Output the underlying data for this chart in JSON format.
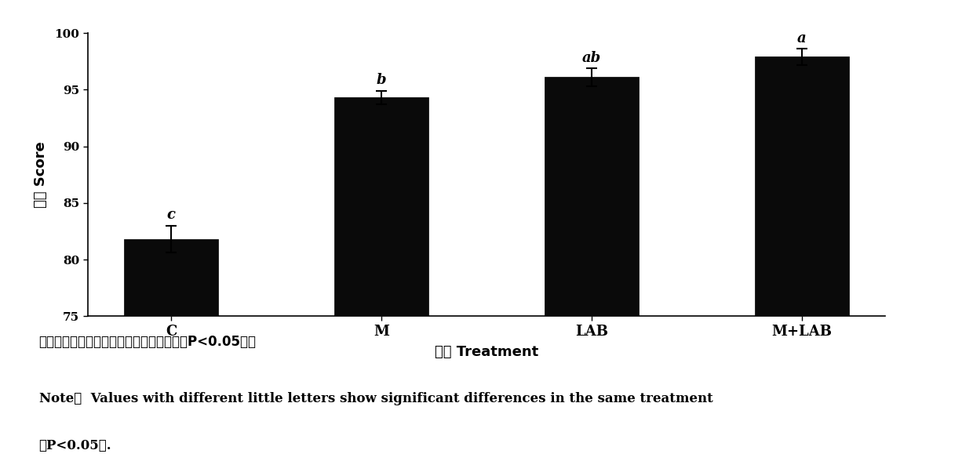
{
  "categories": [
    "C",
    "M",
    "LAB",
    "M+LAB"
  ],
  "values": [
    81.8,
    94.3,
    96.1,
    97.9
  ],
  "errors": [
    1.2,
    0.6,
    0.8,
    0.7
  ],
  "sig_labels": [
    "c",
    "b",
    "ab",
    "a"
  ],
  "bar_color": "#0a0a0a",
  "ylabel": "得分 Score",
  "xlabel": "处理 Treatment",
  "ylim": [
    75,
    100
  ],
  "yticks": [
    75,
    80,
    85,
    90,
    95,
    100
  ],
  "bar_width": 0.45,
  "note_line1": "注：不同小写字母表示不同处理差异显著（P<0.05）。",
  "note_line2": "Note：  Values with different little letters show significant differences in the same treatment",
  "note_line3": "（P<0.05）.",
  "fig_width": 12.4,
  "fig_height": 6.02,
  "dpi": 100
}
